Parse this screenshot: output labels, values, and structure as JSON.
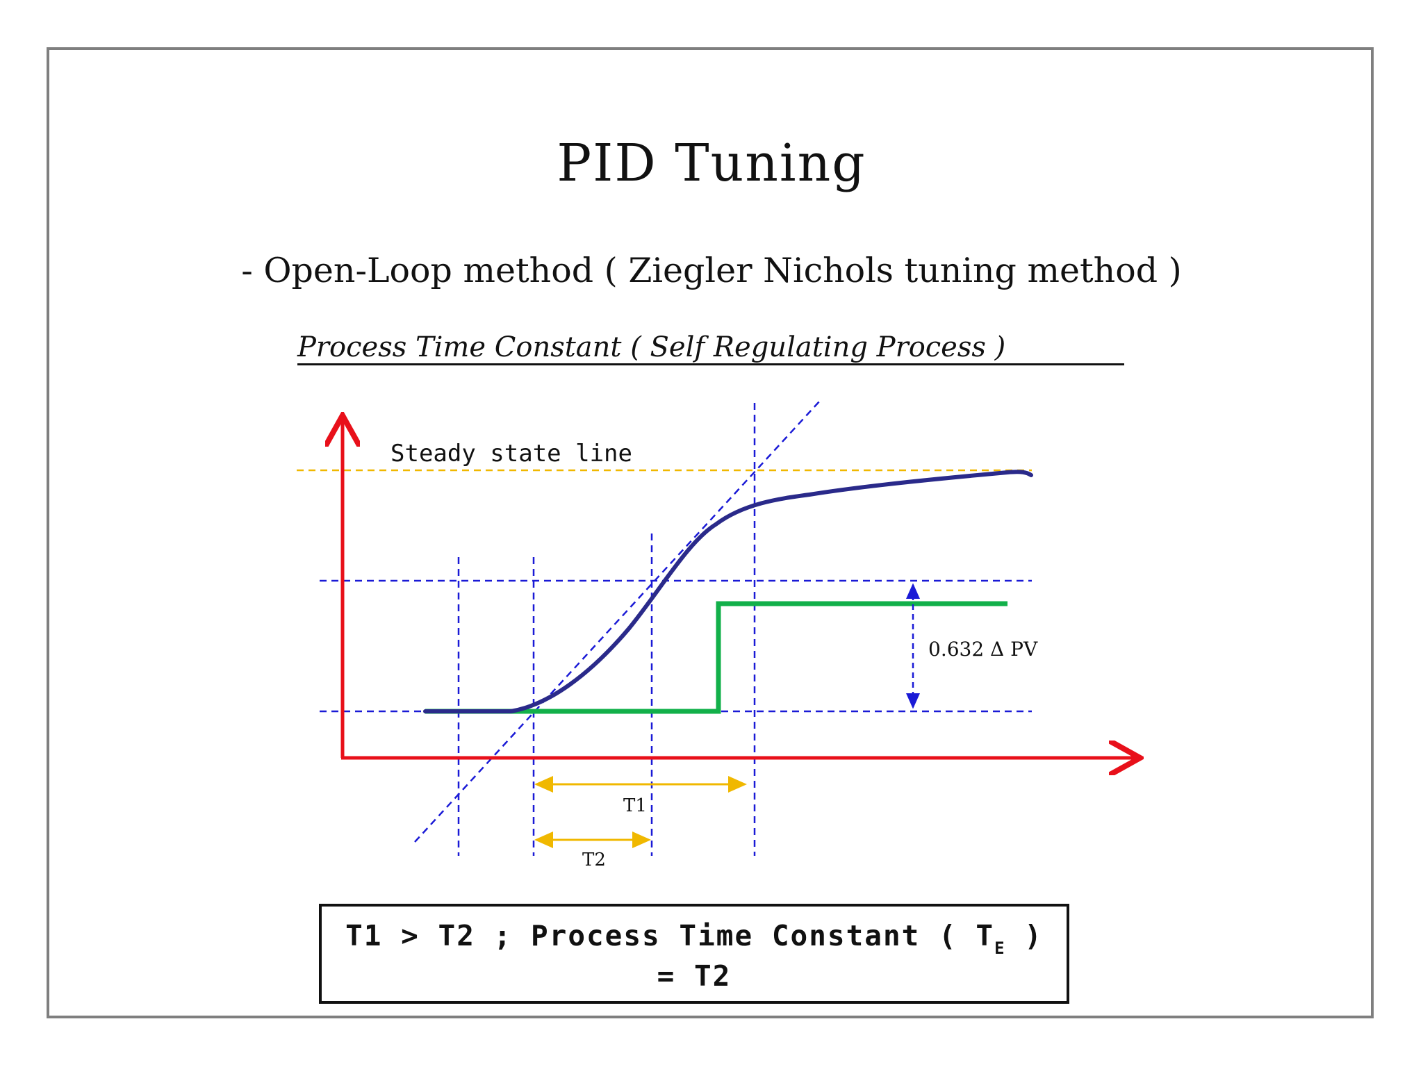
{
  "slide": {
    "title": "PID Tuning",
    "subtitle": "- Open-Loop method ( Ziegler Nichols tuning method )",
    "section_heading": "Process Time Constant ( Self Regulating Process )"
  },
  "diagram": {
    "steady_state_label": "Steady state line",
    "delta_pv_label": "0.632 Δ PV",
    "t1_label": "T1",
    "t2_label": "T2",
    "colors": {
      "axis": "#e8101a",
      "step_input": "#12b04a",
      "process_curve": "#2a2a8a",
      "guide_lines": "#1a1ad6",
      "steady_state_line": "#f0b800",
      "interval_arrows": "#f0b800"
    }
  },
  "formula": {
    "line1_prefix": "T1 > T2 ; Process Time Constant ( T",
    "subscript": "E",
    "line1_suffix": " )",
    "line2": "= T2"
  }
}
